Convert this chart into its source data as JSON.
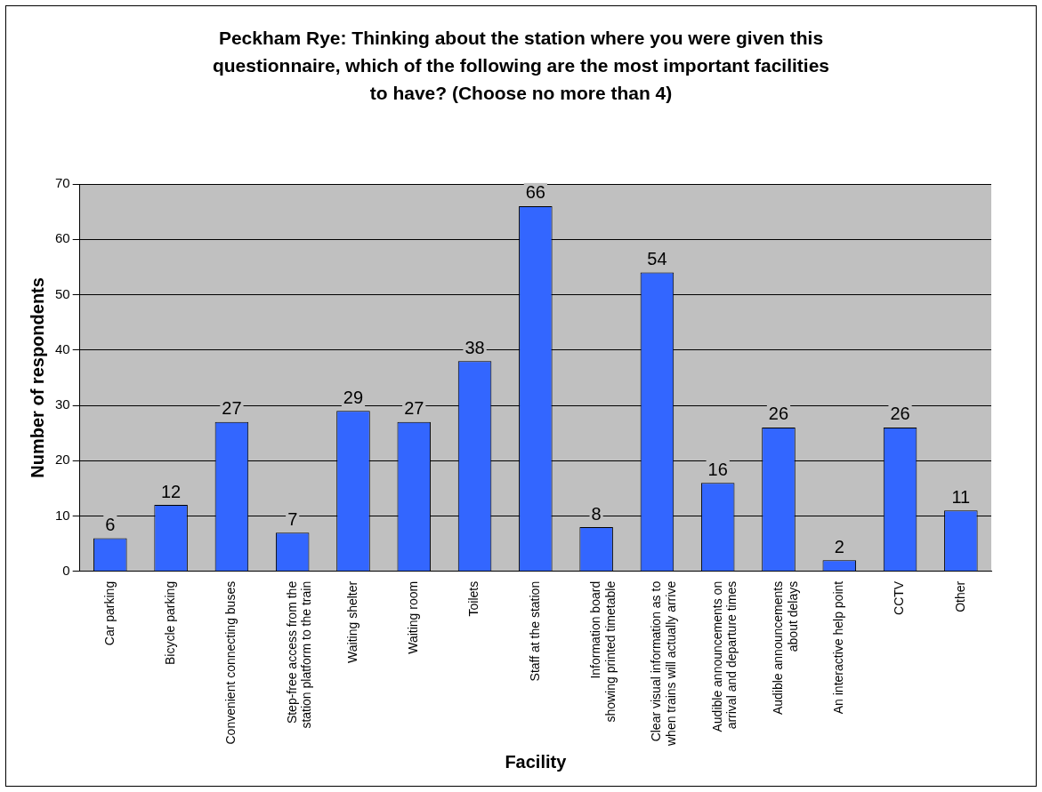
{
  "chart_data": {
    "type": "bar",
    "title": "Peckham Rye: Thinking about the station where you were given this questionnaire, which of the following are the most important facilities to have? (Choose no more than 4)",
    "xlabel": "Facility",
    "ylabel": "Number of respondents",
    "categories": [
      "Car parking",
      "Bicycle parking",
      "Convenient connecting buses",
      "Step-free access from the station platform to the train",
      "Waiting shelter",
      "Waiting room",
      "Toilets",
      "Staff at the station",
      "Information board showing printed timetable",
      "Clear visual information as to when trains will actually arrive",
      "Audible announcements on arrival and departure times",
      "Audible announcements about delays",
      "An interactive help point",
      "CCTV",
      "Other"
    ],
    "values": [
      6,
      12,
      27,
      7,
      29,
      27,
      38,
      66,
      8,
      54,
      16,
      26,
      2,
      26,
      11
    ],
    "color": "#3366ff",
    "ylim": [
      0,
      70
    ],
    "yticks": [
      0,
      10,
      20,
      30,
      40,
      50,
      60,
      70
    ],
    "grid": "y",
    "data_labels": true
  }
}
